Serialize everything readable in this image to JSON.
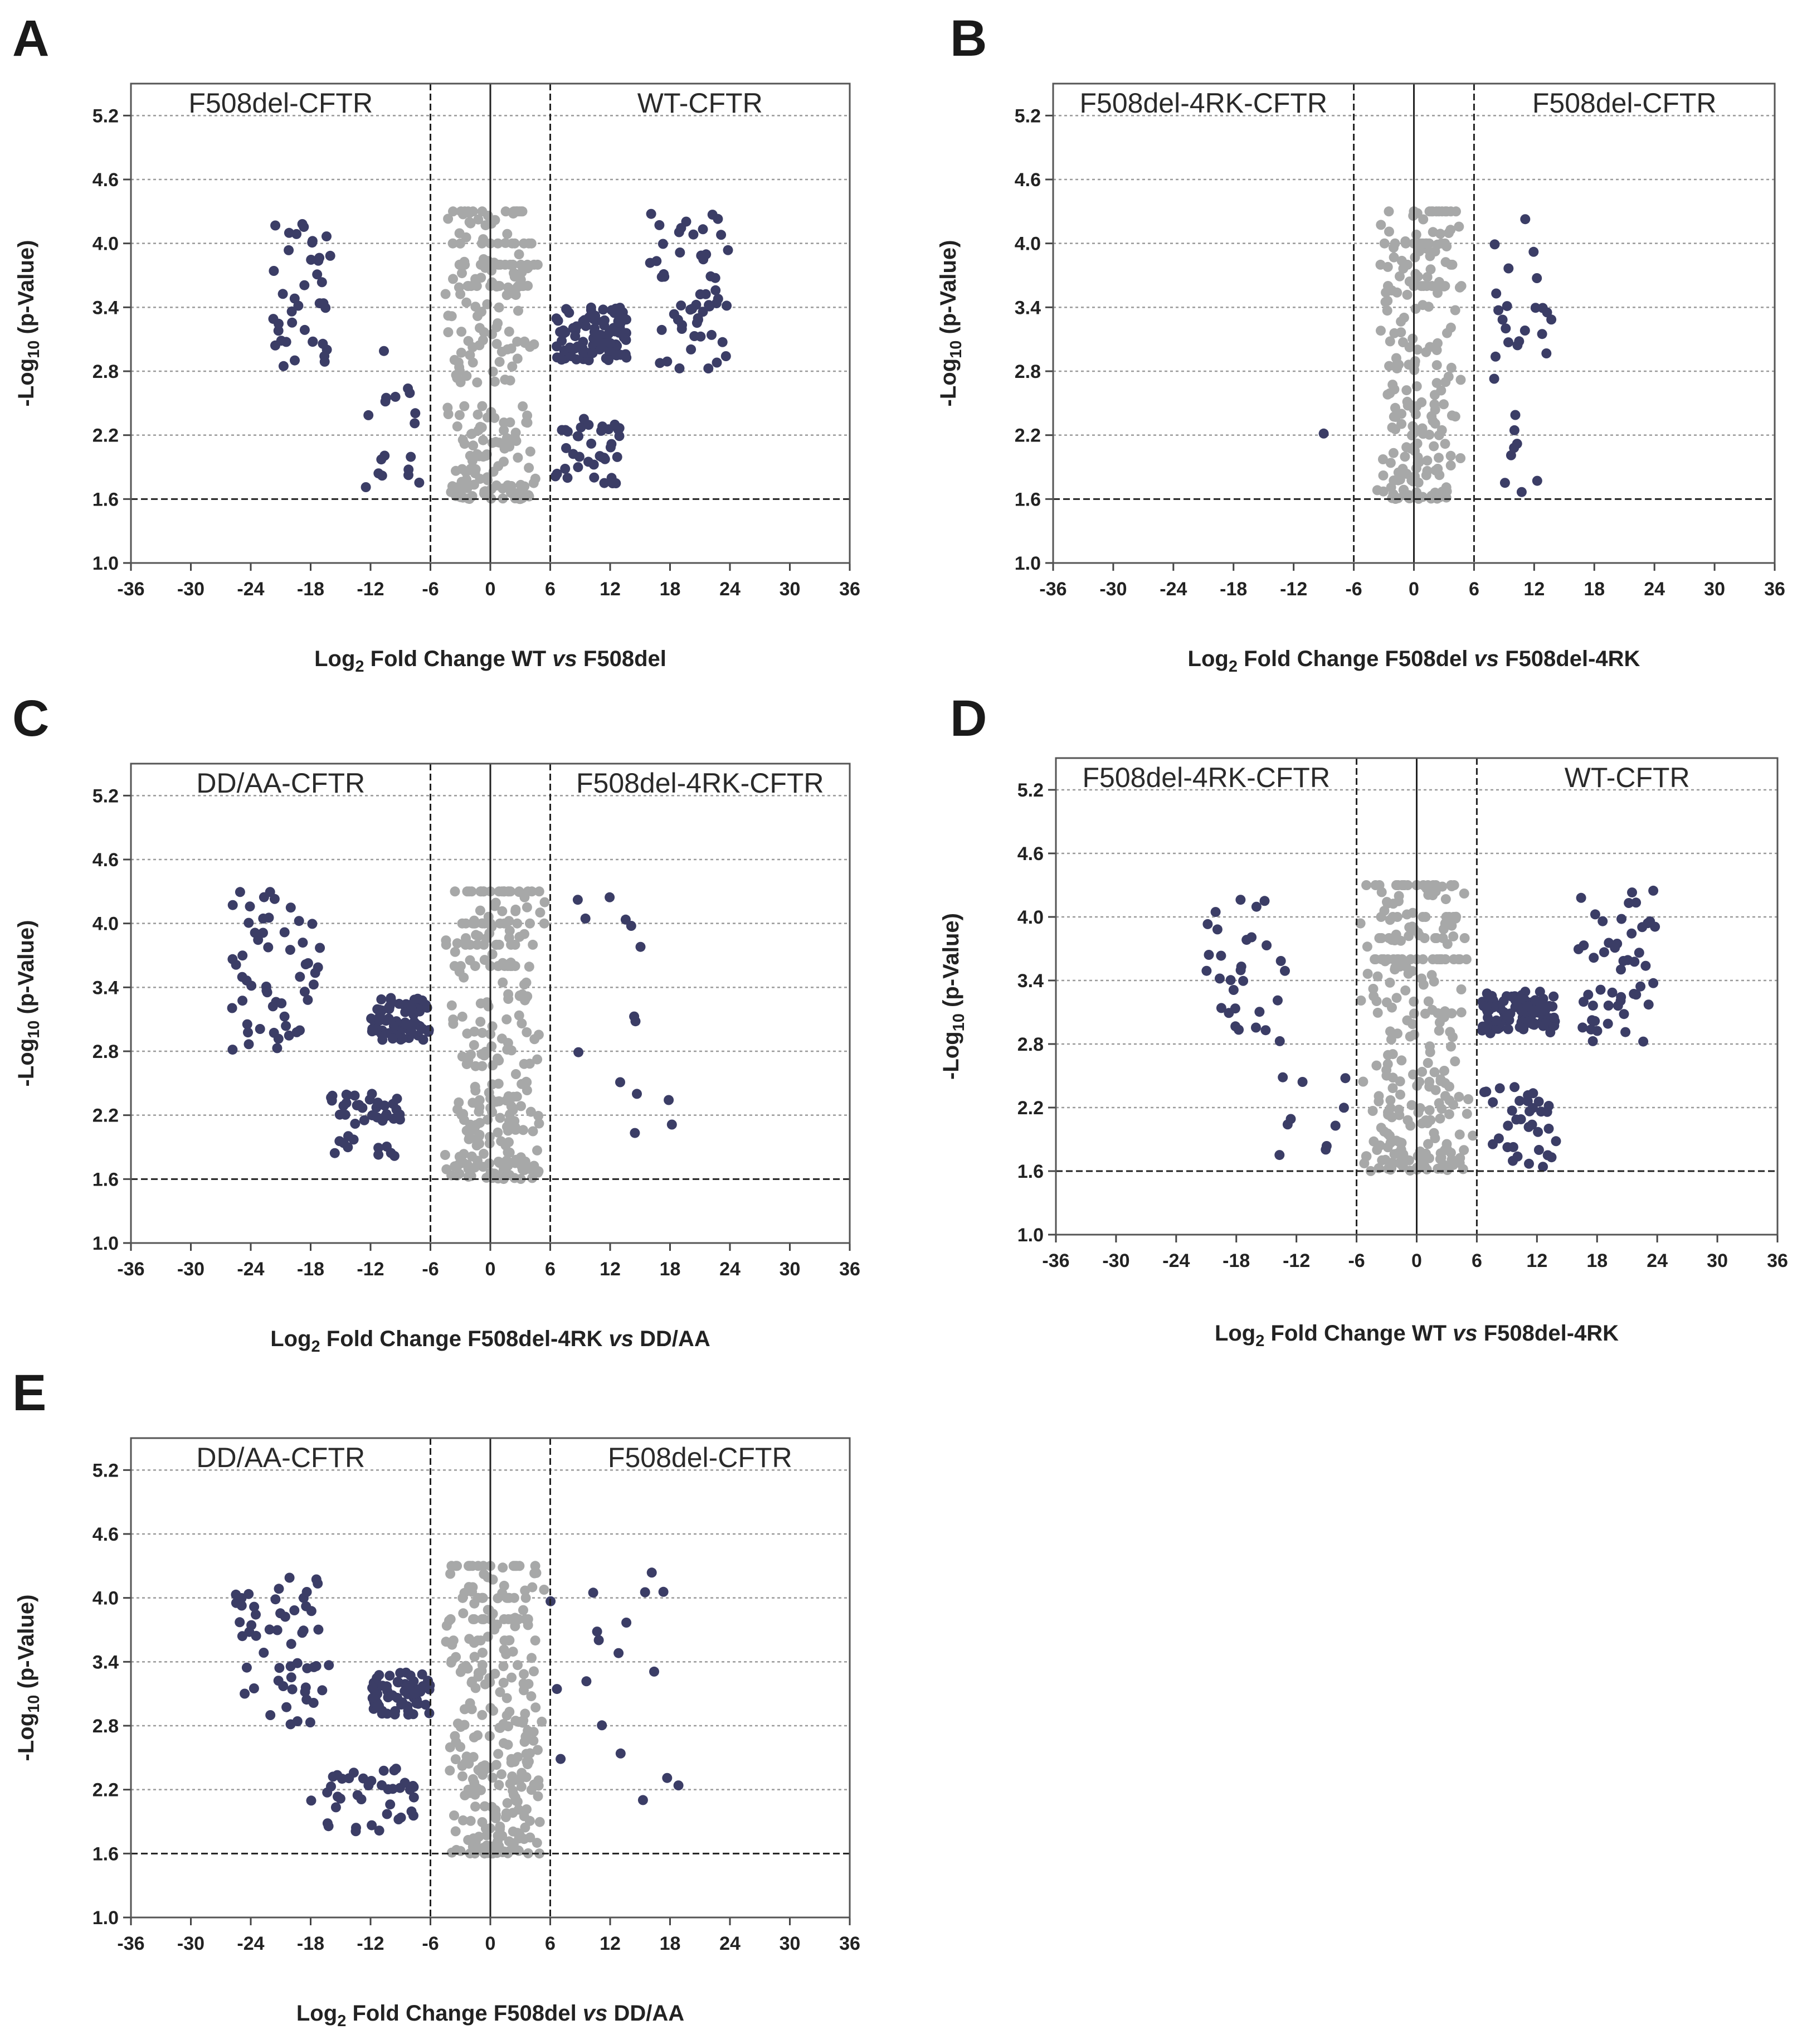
{
  "colors": {
    "significant": "#3b3d66",
    "not_significant": "#a7a8a8",
    "threshold": "#222222",
    "grid": "#9a9a9a"
  },
  "chart_data": [
    {
      "type": "scatter",
      "panel": "A",
      "left_group": "F508del-CFTR",
      "right_group": "WT-CFTR",
      "xlabel": {
        "pre": "Log",
        "sub": "2",
        "mid": " Fold Change WT ",
        "ital": "vs",
        "post": " F508del"
      },
      "ylabel": {
        "pre": "-Log",
        "sub": "10",
        "post": " (p-Value)"
      },
      "xlim": [
        -36,
        36
      ],
      "ylim": [
        1.0,
        5.5
      ],
      "xticks": [
        "-36",
        "-30",
        "-24",
        "-18",
        "-12",
        "-6",
        "0",
        "6",
        "12",
        "18",
        "24",
        "30",
        "36"
      ],
      "yticks": [
        "1.0",
        "1.6",
        "2.2",
        "2.8",
        "3.4",
        "4.0",
        "4.6",
        "5.2"
      ],
      "y_threshold": 1.6,
      "x_thresholds": [
        -6,
        6
      ],
      "clusters": [
        {
          "cls": "sig",
          "x": [
            -22,
            -16
          ],
          "y": [
            2.8,
            4.3
          ],
          "n": 40
        },
        {
          "cls": "sig",
          "x": [
            -13,
            -7
          ],
          "y": [
            1.7,
            3.0
          ],
          "n": 18
        },
        {
          "cls": "sig",
          "x": [
            6.5,
            14
          ],
          "y": [
            2.9,
            3.4
          ],
          "n": 95
        },
        {
          "cls": "sig",
          "x": [
            6.5,
            13
          ],
          "y": [
            1.7,
            2.4
          ],
          "n": 38
        },
        {
          "cls": "sig",
          "x": [
            16,
            24
          ],
          "y": [
            2.8,
            4.3
          ],
          "n": 55
        },
        {
          "cls": "ns",
          "x": [
            -5,
            5
          ],
          "y": [
            1.6,
            4.3
          ],
          "n": 260
        }
      ]
    },
    {
      "type": "scatter",
      "panel": "B",
      "left_group": "F508del-4RK-CFTR",
      "right_group": "F508del-CFTR",
      "xlabel": {
        "pre": "Log",
        "sub": "2",
        "mid": " Fold Change F508del ",
        "ital": "vs",
        "post": " F508del-4RK"
      },
      "ylabel": {
        "pre": "-Log",
        "sub": "10",
        "post": " (p-Value)"
      },
      "xlim": [
        -36,
        36
      ],
      "ylim": [
        1.0,
        5.5
      ],
      "xticks": [
        "-36",
        "-30",
        "-24",
        "-18",
        "-12",
        "-6",
        "0",
        "6",
        "12",
        "18",
        "24",
        "30",
        "36"
      ],
      "yticks": [
        "1.0",
        "1.6",
        "2.2",
        "2.8",
        "3.4",
        "4.0",
        "4.6",
        "5.2"
      ],
      "y_threshold": 1.6,
      "x_thresholds": [
        -6,
        6
      ],
      "clusters": [
        {
          "cls": "sig",
          "x": [
            -10,
            -9
          ],
          "y": [
            2.2,
            2.3
          ],
          "n": 1
        },
        {
          "cls": "sig",
          "x": [
            8,
            14
          ],
          "y": [
            1.6,
            4.3
          ],
          "n": 30
        },
        {
          "cls": "ns",
          "x": [
            -4,
            5
          ],
          "y": [
            1.6,
            4.3
          ],
          "n": 230
        }
      ]
    },
    {
      "type": "scatter",
      "panel": "C",
      "left_group": "DD/AA-CFTR",
      "right_group": "F508del-4RK-CFTR",
      "xlabel": {
        "pre": "Log",
        "sub": "2",
        "mid": " Fold Change F508del-4RK ",
        "ital": "vs",
        "post": " DD/AA"
      },
      "ylabel": {
        "pre": "-Log",
        "sub": "10",
        "post": " (p-Value)"
      },
      "xlim": [
        -36,
        36
      ],
      "ylim": [
        1.0,
        5.5
      ],
      "xticks": [
        "-36",
        "-30",
        "-24",
        "-18",
        "-12",
        "-6",
        "0",
        "6",
        "12",
        "18",
        "24",
        "30",
        "36"
      ],
      "yticks": [
        "1.0",
        "1.6",
        "2.2",
        "2.8",
        "3.4",
        "4.0",
        "4.6",
        "5.2"
      ],
      "y_threshold": 1.6,
      "x_thresholds": [
        -6,
        6
      ],
      "clusters": [
        {
          "cls": "sig",
          "x": [
            -26,
            -17
          ],
          "y": [
            2.8,
            4.3
          ],
          "n": 55
        },
        {
          "cls": "sig",
          "x": [
            -12,
            -6
          ],
          "y": [
            2.9,
            3.3
          ],
          "n": 70
        },
        {
          "cls": "sig",
          "x": [
            -16,
            -9
          ],
          "y": [
            1.8,
            2.4
          ],
          "n": 45
        },
        {
          "cls": "sig",
          "x": [
            7,
            20
          ],
          "y": [
            2.0,
            4.3
          ],
          "n": 14
        },
        {
          "cls": "ns",
          "x": [
            -5,
            6
          ],
          "y": [
            1.6,
            4.3
          ],
          "n": 280
        }
      ]
    },
    {
      "type": "scatter",
      "panel": "D",
      "left_group": "F508del-4RK-CFTR",
      "right_group": "WT-CFTR",
      "xlabel": {
        "pre": "Log",
        "sub": "2",
        "mid": " Fold Change WT ",
        "ital": "vs",
        "post": " F508del-4RK"
      },
      "ylabel": {
        "pre": "-Log",
        "sub": "10",
        "post": " (p-Value)"
      },
      "xlim": [
        -36,
        36
      ],
      "ylim": [
        1.0,
        5.5
      ],
      "xticks": [
        "-36",
        "-30",
        "-24",
        "-18",
        "-12",
        "-6",
        "0",
        "6",
        "12",
        "18",
        "24",
        "30",
        "36"
      ],
      "yticks": [
        "1.0",
        "1.6",
        "2.2",
        "2.8",
        "3.4",
        "4.0",
        "4.6",
        "5.2"
      ],
      "y_threshold": 1.6,
      "x_thresholds": [
        -6,
        6
      ],
      "clusters": [
        {
          "cls": "sig",
          "x": [
            -21,
            -13
          ],
          "y": [
            2.8,
            4.3
          ],
          "n": 30
        },
        {
          "cls": "sig",
          "x": [
            -14,
            -7
          ],
          "y": [
            1.6,
            2.6
          ],
          "n": 10
        },
        {
          "cls": "sig",
          "x": [
            6.5,
            14
          ],
          "y": [
            2.9,
            3.3
          ],
          "n": 100
        },
        {
          "cls": "sig",
          "x": [
            6.5,
            14
          ],
          "y": [
            1.6,
            2.4
          ],
          "n": 35
        },
        {
          "cls": "sig",
          "x": [
            16,
            24
          ],
          "y": [
            2.8,
            4.3
          ],
          "n": 50
        },
        {
          "cls": "ns",
          "x": [
            -6,
            6
          ],
          "y": [
            1.6,
            4.3
          ],
          "n": 280
        }
      ]
    },
    {
      "type": "scatter",
      "panel": "E",
      "left_group": "DD/AA-CFTR",
      "right_group": "F508del-CFTR",
      "xlabel": {
        "pre": "Log",
        "sub": "2",
        "mid": " Fold Change F508del ",
        "ital": "vs",
        "post": " DD/AA"
      },
      "ylabel": {
        "pre": "-Log",
        "sub": "10",
        "post": " (p-Value)"
      },
      "xlim": [
        -36,
        36
      ],
      "ylim": [
        1.0,
        5.5
      ],
      "xticks": [
        "-36",
        "-30",
        "-24",
        "-18",
        "-12",
        "-6",
        "0",
        "6",
        "12",
        "18",
        "24",
        "30",
        "36"
      ],
      "yticks": [
        "1.0",
        "1.6",
        "2.2",
        "2.8",
        "3.4",
        "4.0",
        "4.6",
        "5.2"
      ],
      "y_threshold": 1.6,
      "x_thresholds": [
        -6,
        6
      ],
      "clusters": [
        {
          "cls": "sig",
          "x": [
            -26,
            -16
          ],
          "y": [
            2.8,
            4.3
          ],
          "n": 55
        },
        {
          "cls": "sig",
          "x": [
            -12,
            -6
          ],
          "y": [
            2.9,
            3.3
          ],
          "n": 65
        },
        {
          "cls": "sig",
          "x": [
            -18,
            -7
          ],
          "y": [
            1.8,
            2.4
          ],
          "n": 40
        },
        {
          "cls": "sig",
          "x": [
            6,
            20
          ],
          "y": [
            1.9,
            4.3
          ],
          "n": 18
        },
        {
          "cls": "ns",
          "x": [
            -5,
            6
          ],
          "y": [
            1.6,
            4.3
          ],
          "n": 290
        }
      ]
    }
  ]
}
